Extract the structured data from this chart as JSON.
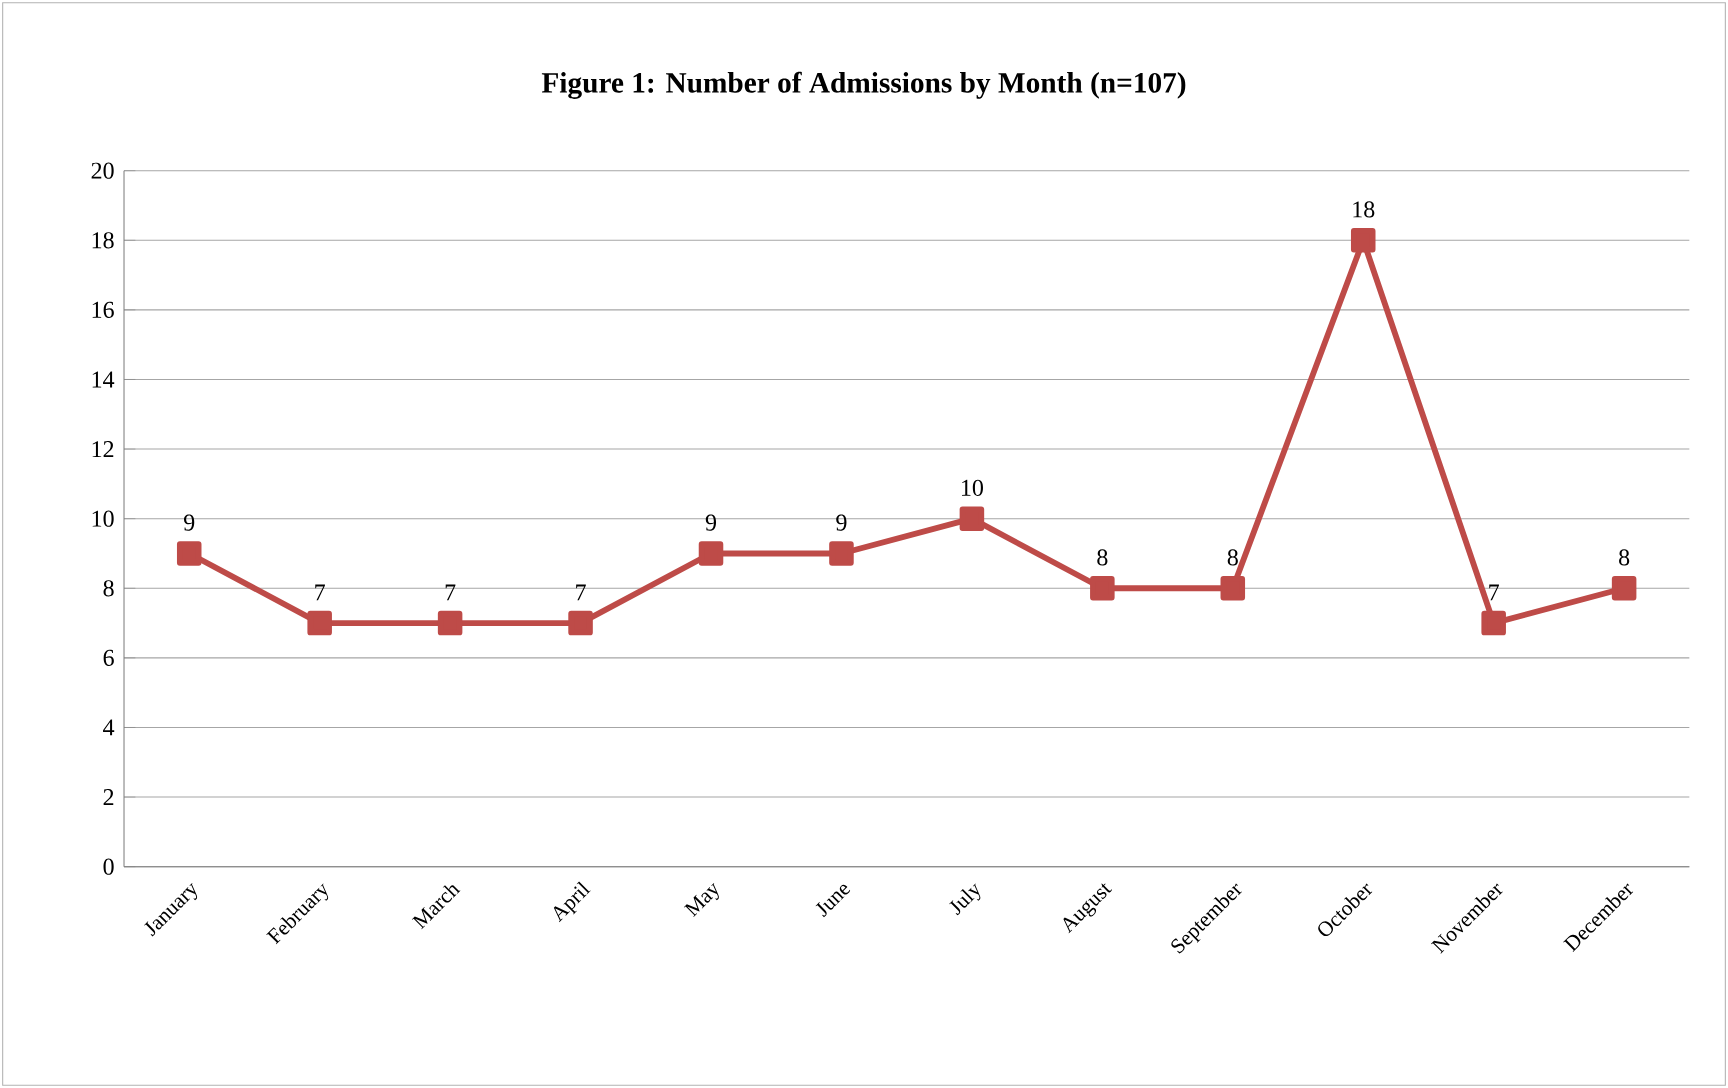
{
  "chart_data": {
    "type": "line",
    "title": "Figure 1: Number of Admissions by Month  (n=107)",
    "categories": [
      "January",
      "February",
      "March",
      "April",
      "May",
      "June",
      "July",
      "August",
      "September",
      "October",
      "November",
      "December"
    ],
    "values": [
      9,
      7,
      7,
      7,
      9,
      9,
      10,
      8,
      8,
      18,
      7,
      8
    ],
    "color": "#be4b48",
    "ylim": [
      0,
      20
    ],
    "yticks": [
      0,
      2,
      4,
      6,
      8,
      10,
      12,
      14,
      16,
      18,
      20
    ],
    "grid": "y",
    "marker": "square",
    "line_style": "solid",
    "data_labels": true
  }
}
